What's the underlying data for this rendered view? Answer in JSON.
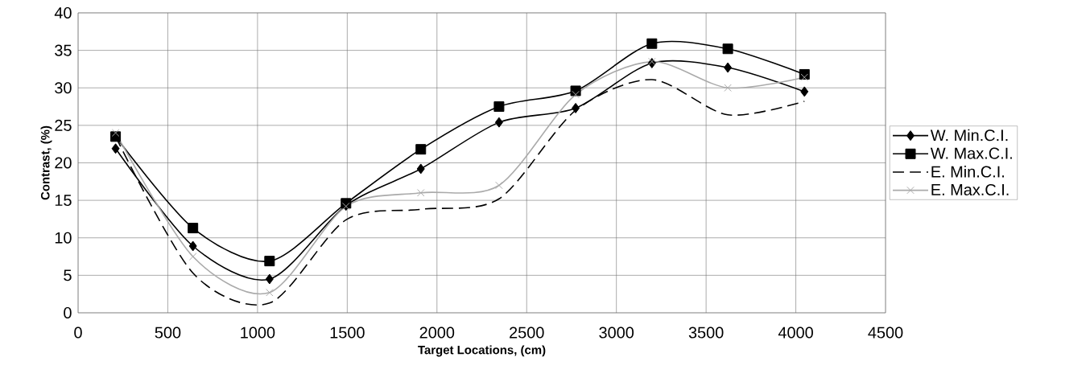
{
  "chart_data": {
    "type": "line",
    "xlabel": "Target Locations, (cm)",
    "ylabel": "Contrast, (%)",
    "x": [
      209,
      640,
      1067,
      1493,
      1910,
      2346,
      2773,
      3198,
      3621,
      4048
    ],
    "series": [
      {
        "name": "W.  Min.C.I.",
        "color": "#000000",
        "marker": "diamond",
        "line_style": "solid",
        "values": [
          21.9,
          8.9,
          4.5,
          14.3,
          19.2,
          25.4,
          27.3,
          33.3,
          32.7,
          29.5
        ]
      },
      {
        "name": "W. Max.C.I.",
        "color": "#000000",
        "marker": "square",
        "line_style": "solid",
        "values": [
          23.5,
          11.3,
          6.9,
          14.6,
          21.8,
          27.5,
          29.6,
          35.9,
          35.2,
          31.8
        ]
      },
      {
        "name": "E. Min.C.I.",
        "color": "#000000",
        "marker": "none",
        "line_style": "dashed",
        "values": [
          23.5,
          5.3,
          1.3,
          12.4,
          13.8,
          15.2,
          27.0,
          31.1,
          26.4,
          28.2
        ]
      },
      {
        "name": "E. Max.C.I.",
        "color": "#aaaaaa",
        "marker": "cross",
        "line_style": "solid",
        "values": [
          24.0,
          7.5,
          2.7,
          14.2,
          16.0,
          17.0,
          29.1,
          33.5,
          30.0,
          31.4
        ]
      }
    ],
    "xlim": [
      0,
      4500
    ],
    "ylim": [
      0,
      40
    ],
    "xticks": [
      0,
      500,
      1000,
      1500,
      2000,
      2500,
      3000,
      3500,
      4000,
      4500
    ],
    "yticks": [
      0,
      5,
      10,
      15,
      20,
      25,
      30,
      35,
      40
    ],
    "grid": true,
    "legend": "right"
  }
}
